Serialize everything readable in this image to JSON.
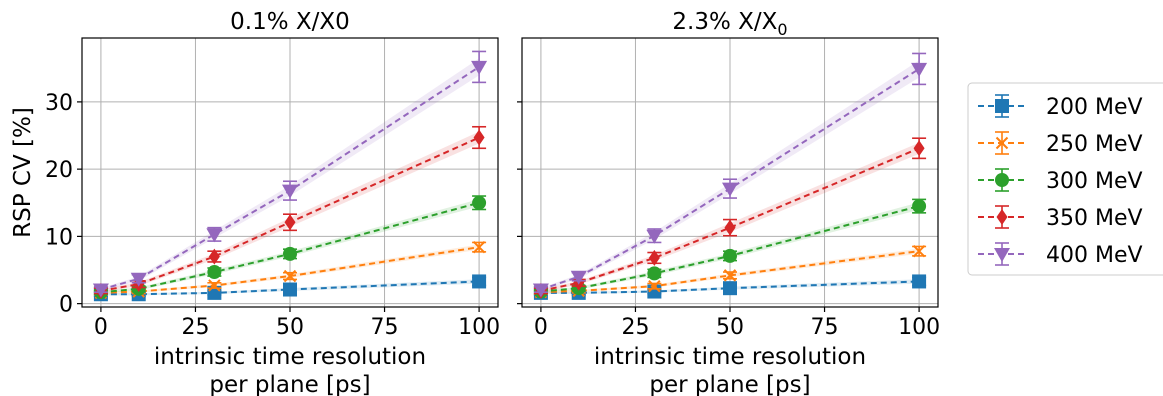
{
  "chart_data": [
    {
      "type": "line",
      "title": "0.1% X/X0",
      "xlabel": [
        "intrinsic time resolution",
        "per plane [ps]"
      ],
      "ylabel": "RSP CV [%]",
      "xlim": [
        -5,
        105
      ],
      "ylim": [
        -0.5,
        39.5
      ],
      "xticks": [
        0,
        25,
        50,
        75,
        100
      ],
      "yticks": [
        0,
        10,
        20,
        30
      ],
      "grid": true,
      "x": [
        0,
        10,
        30,
        50,
        100
      ],
      "series": [
        {
          "name": "200 MeV",
          "marker": "square",
          "color": "#1f77b4",
          "values": [
            1.4,
            1.4,
            1.6,
            2.1,
            3.3
          ],
          "errors": [
            0.3,
            0.3,
            0.3,
            0.4,
            0.6
          ]
        },
        {
          "name": "250 MeV",
          "marker": "x",
          "color": "#ff7f0e",
          "values": [
            1.6,
            1.8,
            2.7,
            4.1,
            8.4
          ],
          "errors": [
            0.3,
            0.3,
            0.4,
            0.5,
            0.7
          ]
        },
        {
          "name": "300 MeV",
          "marker": "circle",
          "color": "#2ca02c",
          "values": [
            1.7,
            2.2,
            4.7,
            7.4,
            15.0
          ],
          "errors": [
            0.3,
            0.4,
            0.6,
            0.7,
            1.0
          ]
        },
        {
          "name": "350 MeV",
          "marker": "diamond",
          "color": "#d62728",
          "values": [
            1.9,
            2.9,
            7.0,
            12.1,
            24.7
          ],
          "errors": [
            0.4,
            0.5,
            0.8,
            1.2,
            1.6
          ]
        },
        {
          "name": "400 MeV",
          "marker": "triangle-down",
          "color": "#9467bd",
          "values": [
            2.1,
            3.7,
            10.3,
            16.8,
            35.2
          ],
          "errors": [
            0.4,
            0.6,
            1.0,
            1.4,
            2.3
          ]
        }
      ]
    },
    {
      "type": "line",
      "title": "2.3% X/X0",
      "title_main": "2.3% X/X",
      "title_sub": "0",
      "xlabel": [
        "intrinsic time resolution",
        "per plane [ps]"
      ],
      "xlim": [
        -5,
        105
      ],
      "ylim": [
        -0.5,
        39.5
      ],
      "xticks": [
        0,
        25,
        50,
        75,
        100
      ],
      "grid": true,
      "x": [
        0,
        10,
        30,
        50,
        100
      ],
      "series": [
        {
          "name": "200 MeV",
          "marker": "square",
          "color": "#1f77b4",
          "values": [
            1.6,
            1.6,
            1.8,
            2.3,
            3.3
          ],
          "errors": [
            0.3,
            0.3,
            0.3,
            0.4,
            0.6
          ]
        },
        {
          "name": "250 MeV",
          "marker": "x",
          "color": "#ff7f0e",
          "values": [
            1.7,
            1.9,
            2.6,
            4.2,
            7.8
          ],
          "errors": [
            0.3,
            0.3,
            0.4,
            0.5,
            0.7
          ]
        },
        {
          "name": "300 MeV",
          "marker": "circle",
          "color": "#2ca02c",
          "values": [
            1.8,
            2.3,
            4.5,
            7.1,
            14.5
          ],
          "errors": [
            0.3,
            0.4,
            0.6,
            0.7,
            1.0
          ]
        },
        {
          "name": "350 MeV",
          "marker": "diamond",
          "color": "#d62728",
          "values": [
            1.9,
            3.1,
            6.8,
            11.3,
            23.1
          ],
          "errors": [
            0.4,
            0.5,
            0.8,
            1.2,
            1.5
          ]
        },
        {
          "name": "400 MeV",
          "marker": "triangle-down",
          "color": "#9467bd",
          "values": [
            2.1,
            4.0,
            10.1,
            17.1,
            34.9
          ],
          "errors": [
            0.4,
            0.6,
            1.0,
            1.4,
            2.3
          ]
        }
      ]
    }
  ],
  "legend": {
    "placement": "right",
    "items": [
      "200 MeV",
      "250 MeV",
      "300 MeV",
      "350 MeV",
      "400 MeV"
    ]
  }
}
